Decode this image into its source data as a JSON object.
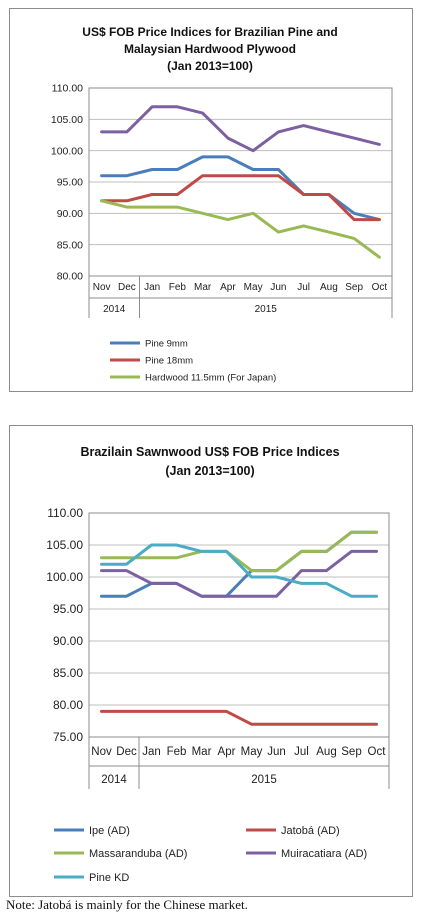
{
  "note": "Note: Jatobá is mainly for the Chinese market.",
  "chart_data": [
    {
      "type": "line",
      "title": [
        "US$ FOB Price Indices for Brazilian Pine and",
        "Malaysian Hardwood Plywood",
        "(Jan 2013=100)"
      ],
      "categories": [
        "Nov",
        "Dec",
        "Jan",
        "Feb",
        "Mar",
        "Apr",
        "May",
        "Jun",
        "Jul",
        "Aug",
        "Sep",
        "Oct"
      ],
      "year_groups": [
        {
          "label": "2014",
          "span": [
            0,
            1
          ]
        },
        {
          "label": "2015",
          "span": [
            2,
            11
          ]
        }
      ],
      "ylim": [
        80,
        110
      ],
      "yticks": [
        "80.00",
        "85.00",
        "90.00",
        "95.00",
        "100.00",
        "105.00",
        "110.00"
      ],
      "grid": true,
      "legend_position": "bottom",
      "series": [
        {
          "name": "Pine 9mm",
          "color": "#4a7ebb",
          "values": [
            96,
            96,
            97,
            97,
            99,
            99,
            97,
            97,
            93,
            93,
            90,
            89
          ]
        },
        {
          "name": "Pine 18mm",
          "color": "#be4b48",
          "values": [
            92,
            92,
            93,
            93,
            96,
            96,
            96,
            96,
            93,
            93,
            89,
            89
          ]
        },
        {
          "name": "Hardwood 11.5mm (For Japan)",
          "color": "#98b954",
          "values": [
            92,
            91,
            91,
            91,
            90,
            89,
            90,
            87,
            88,
            87,
            86,
            83
          ]
        },
        {
          "name": "",
          "color": "#7d60a0",
          "values": [
            103,
            103,
            107,
            107,
            106,
            102,
            100,
            103,
            104,
            103,
            102,
            101
          ]
        }
      ]
    },
    {
      "type": "line",
      "title": [
        "Brazilain Sawnwood US$ FOB Price Indices",
        "(Jan 2013=100)"
      ],
      "categories": [
        "Nov",
        "Dec",
        "Jan",
        "Feb",
        "Mar",
        "Apr",
        "May",
        "Jun",
        "Jul",
        "Aug",
        "Sep",
        "Oct"
      ],
      "year_groups": [
        {
          "label": "2014",
          "span": [
            0,
            1
          ]
        },
        {
          "label": "2015",
          "span": [
            2,
            11
          ]
        }
      ],
      "ylim": [
        75,
        110
      ],
      "yticks": [
        "75.00",
        "80.00",
        "85.00",
        "90.00",
        "95.00",
        "100.00",
        "105.00",
        "110.00"
      ],
      "grid": true,
      "legend_position": "bottom",
      "series": [
        {
          "name": "Ipe (AD)",
          "color": "#4a7ebb",
          "values": [
            97,
            97,
            99,
            99,
            97,
            97,
            101,
            101,
            104,
            104,
            107,
            107
          ]
        },
        {
          "name": "Jatobá (AD)",
          "color": "#be4b48",
          "values": [
            79,
            79,
            79,
            79,
            79,
            79,
            77,
            77,
            77,
            77,
            77,
            77
          ]
        },
        {
          "name": "Massaranduba (AD)",
          "color": "#98b954",
          "values": [
            103,
            103,
            103,
            103,
            104,
            104,
            101,
            101,
            104,
            104,
            107,
            107
          ]
        },
        {
          "name": "Muiracatiara (AD)",
          "color": "#7d60a0",
          "values": [
            101,
            101,
            99,
            99,
            97,
            97,
            97,
            97,
            101,
            101,
            104,
            104
          ]
        },
        {
          "name": "Pine KD",
          "color": "#4bacc6",
          "values": [
            102,
            102,
            105,
            105,
            104,
            104,
            100,
            100,
            99,
            99,
            97,
            97
          ]
        }
      ]
    }
  ]
}
